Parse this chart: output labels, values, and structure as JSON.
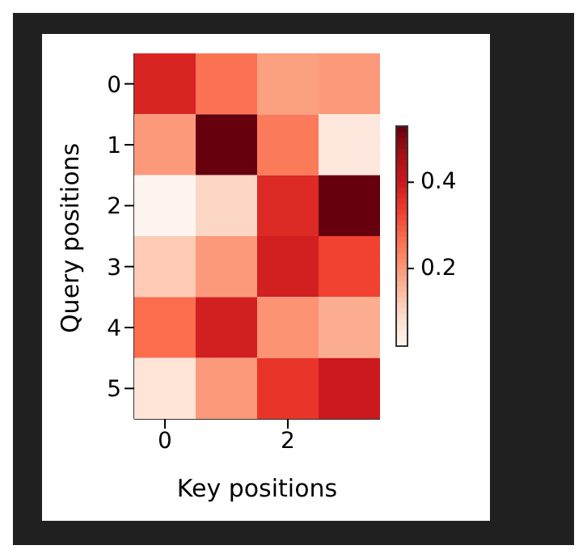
{
  "chart_data": {
    "type": "heatmap",
    "xlabel": "Key positions",
    "ylabel": "Query positions",
    "categories": [
      "0",
      null,
      "2",
      null
    ],
    "y_categories": [
      "0",
      "1",
      "2",
      "3",
      "4",
      "5"
    ],
    "cells": [
      [
        0.38,
        0.26,
        0.19,
        0.2
      ],
      [
        0.2,
        0.53,
        0.25,
        0.06
      ],
      [
        0.02,
        0.1,
        0.37,
        0.53
      ],
      [
        0.12,
        0.2,
        0.39,
        0.33
      ],
      [
        0.27,
        0.39,
        0.21,
        0.17
      ],
      [
        0.07,
        0.2,
        0.35,
        0.4
      ]
    ],
    "clim": [
      0.02,
      0.53
    ],
    "cticks": [
      0.2,
      0.4
    ]
  }
}
